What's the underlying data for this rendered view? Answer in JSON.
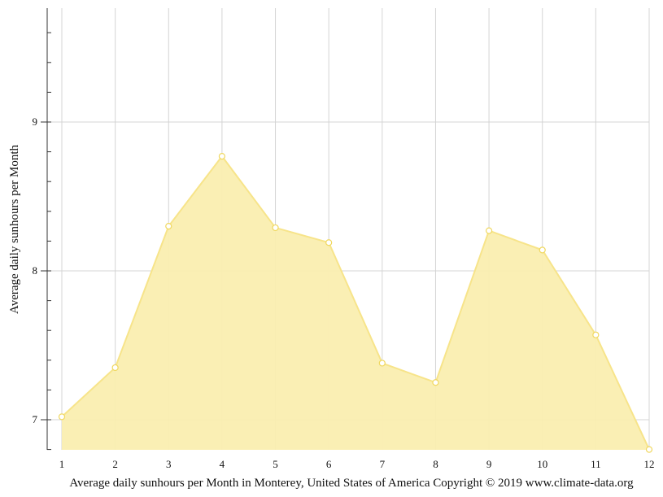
{
  "chart_data": {
    "type": "area",
    "title": "",
    "xlabel": "Average daily sunhours per Month in Monterey, United States of America Copyright © 2019 www.climate-data.org",
    "ylabel": "Average daily sunhours per Month",
    "x": [
      "1",
      "2",
      "3",
      "4",
      "5",
      "6",
      "7",
      "8",
      "9",
      "10",
      "11",
      "12"
    ],
    "series": [
      {
        "values": [
          7.02,
          7.35,
          8.3,
          8.77,
          8.29,
          8.19,
          7.38,
          7.25,
          8.27,
          8.14,
          7.57,
          6.8
        ]
      }
    ],
    "ylim": [
      6.8,
      9.76
    ],
    "y_ticks": [
      "7",
      "8",
      "9"
    ],
    "grid": true,
    "legend": "none",
    "colors": {
      "fill": "#faeeb0",
      "line": "#f7e48a",
      "marker_fill": "#ffffff",
      "marker_stroke": "#f0d860",
      "grid": "#d4d4d4",
      "axis": "#333333"
    }
  }
}
